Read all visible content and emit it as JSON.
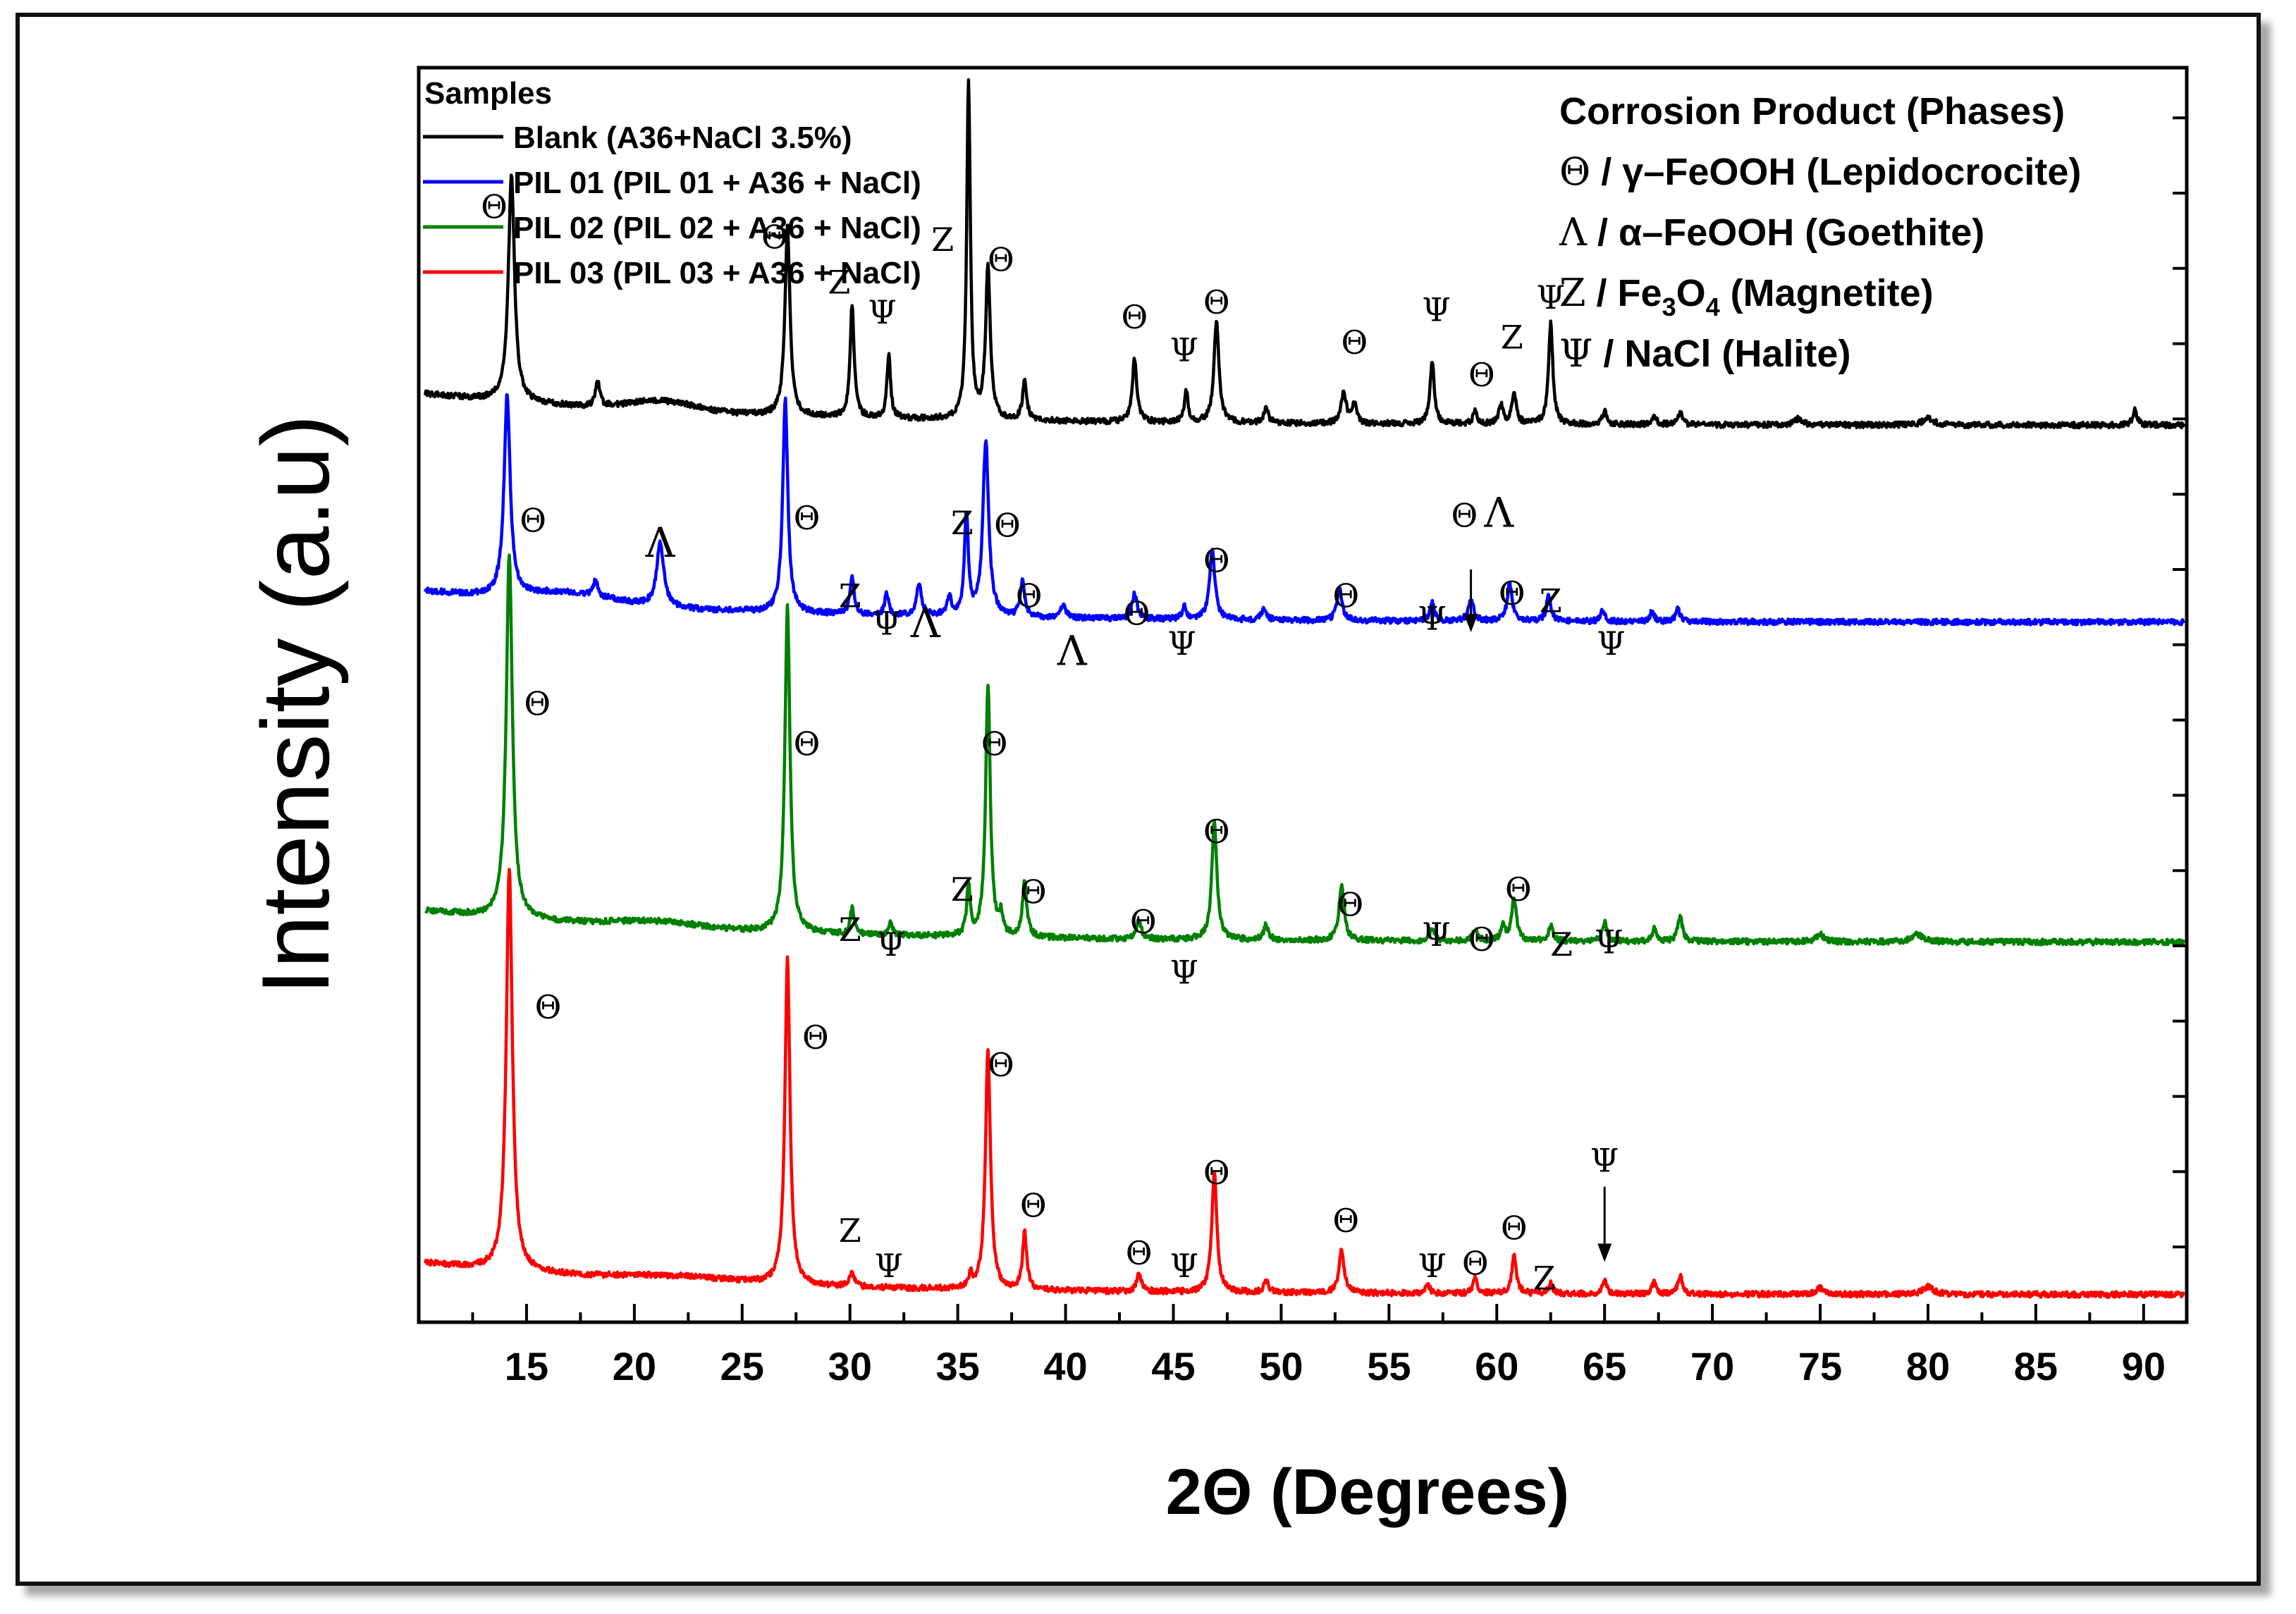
{
  "chart_data": {
    "type": "line",
    "title": "",
    "xlabel": "2Θ (Degrees)",
    "ylabel": "Intensity (a.u)",
    "xlim": [
      10,
      92
    ],
    "ylim": [
      0,
      100
    ],
    "xticks": [
      15,
      20,
      25,
      30,
      35,
      40,
      45,
      50,
      55,
      60,
      65,
      70,
      75,
      80,
      85,
      90
    ],
    "legend_title": "Samples",
    "series": [
      {
        "name": "Blank (A36+NaCl 3.5%)",
        "color": "#000000",
        "baseline": 71.5,
        "tilt": 2.5,
        "noise": 0.45,
        "bumps": [
          [
            21.3,
            0.8,
            1.5
          ]
        ],
        "peaks": [
          [
            14.3,
            18,
            0.17
          ],
          [
            18.3,
            2,
            0.12
          ],
          [
            27.1,
            15,
            0.14
          ],
          [
            30.1,
            9,
            0.11
          ],
          [
            31.8,
            5,
            0.1
          ],
          [
            35.5,
            27,
            0.1
          ],
          [
            36.4,
            12,
            0.13
          ],
          [
            38.1,
            3,
            0.12
          ],
          [
            43.2,
            5,
            0.13
          ],
          [
            45.6,
            2.5,
            0.1
          ],
          [
            47.0,
            8,
            0.14
          ],
          [
            49.3,
            1.2,
            0.12
          ],
          [
            52.9,
            2.5,
            0.14
          ],
          [
            53.4,
            1.5,
            0.12
          ],
          [
            57.0,
            5,
            0.12
          ],
          [
            59.0,
            1.2,
            0.1
          ],
          [
            60.2,
            1.5,
            0.12
          ],
          [
            60.8,
            2.5,
            0.12
          ],
          [
            62.5,
            8,
            0.12
          ],
          [
            65.0,
            1,
            0.12
          ],
          [
            67.3,
            0.8,
            0.12
          ],
          [
            68.5,
            1,
            0.12
          ],
          [
            74.0,
            0.5,
            0.2
          ],
          [
            80.0,
            0.5,
            0.3
          ],
          [
            89.6,
            1.2,
            0.12
          ]
        ]
      },
      {
        "name": "PIL 01 (PIL 01 + A36 + NaCl)",
        "color": "#0000ff",
        "baseline": 55.8,
        "tilt": 2.5,
        "noise": 0.45,
        "bumps": [
          [
            17,
            0.8,
            2.0
          ]
        ],
        "peaks": [
          [
            14.1,
            16,
            0.17
          ],
          [
            18.2,
            1.2,
            0.12
          ],
          [
            21.2,
            5,
            0.2
          ],
          [
            27.0,
            17,
            0.14
          ],
          [
            30.1,
            3,
            0.11
          ],
          [
            31.7,
            1.8,
            0.1
          ],
          [
            33.2,
            2.5,
            0.14
          ],
          [
            34.6,
            1.5,
            0.12
          ],
          [
            35.4,
            8,
            0.11
          ],
          [
            36.3,
            14,
            0.16
          ],
          [
            38.0,
            3,
            0.12
          ],
          [
            39.9,
            1,
            0.15
          ],
          [
            43.2,
            2,
            0.14
          ],
          [
            45.5,
            1,
            0.12
          ],
          [
            46.8,
            5.5,
            0.15
          ],
          [
            49.2,
            1,
            0.12
          ],
          [
            52.7,
            2.5,
            0.14
          ],
          [
            57.0,
            1.5,
            0.12
          ],
          [
            58.8,
            1.8,
            0.14
          ],
          [
            60.6,
            3,
            0.14
          ],
          [
            62.4,
            2,
            0.12
          ],
          [
            64.9,
            0.8,
            0.12
          ],
          [
            67.2,
            0.8,
            0.12
          ],
          [
            68.4,
            1,
            0.12
          ]
        ]
      },
      {
        "name": "PIL 02 (PIL 02 + A36 + NaCl)",
        "color": "#008000",
        "baseline": 30.3,
        "tilt": 2.5,
        "noise": 0.45,
        "bumps": [
          [
            21,
            0.5,
            2.0
          ]
        ],
        "peaks": [
          [
            14.2,
            29,
            0.17
          ],
          [
            27.1,
            26,
            0.14
          ],
          [
            30.1,
            2,
            0.11
          ],
          [
            31.9,
            1,
            0.1
          ],
          [
            35.5,
            4,
            0.1
          ],
          [
            36.4,
            20,
            0.13
          ],
          [
            37.0,
            1.5,
            0.1
          ],
          [
            38.1,
            4.5,
            0.12
          ],
          [
            43.4,
            1.5,
            0.13
          ],
          [
            46.9,
            9.5,
            0.14
          ],
          [
            49.3,
            1.2,
            0.12
          ],
          [
            52.8,
            4.5,
            0.14
          ],
          [
            57.0,
            1,
            0.12
          ],
          [
            59.0,
            1,
            0.12
          ],
          [
            60.3,
            1.2,
            0.12
          ],
          [
            60.8,
            3.5,
            0.13
          ],
          [
            62.5,
            1.2,
            0.12
          ],
          [
            65.0,
            1.5,
            0.12
          ],
          [
            67.3,
            1,
            0.12
          ],
          [
            68.5,
            2,
            0.13
          ],
          [
            75.0,
            0.6,
            0.2
          ],
          [
            79.5,
            0.6,
            0.3
          ]
        ]
      },
      {
        "name": "PIL 03 (PIL 03 + A36 + NaCl)",
        "color": "#ff0000",
        "baseline": 2.2,
        "tilt": 2.5,
        "noise": 0.45,
        "bumps": [
          [
            22,
            0.4,
            2.5
          ]
        ],
        "peaks": [
          [
            14.2,
            32,
            0.17
          ],
          [
            27.1,
            26,
            0.14
          ],
          [
            30.1,
            1.2,
            0.11
          ],
          [
            35.6,
            1,
            0.1
          ],
          [
            36.4,
            19,
            0.14
          ],
          [
            38.1,
            4.5,
            0.12
          ],
          [
            43.4,
            1.5,
            0.13
          ],
          [
            46.9,
            9.5,
            0.14
          ],
          [
            49.3,
            1,
            0.12
          ],
          [
            52.8,
            3.5,
            0.14
          ],
          [
            56.8,
            0.7,
            0.12
          ],
          [
            59.0,
            1.2,
            0.12
          ],
          [
            60.8,
            3,
            0.13
          ],
          [
            62.5,
            0.8,
            0.12
          ],
          [
            65.0,
            1,
            0.12
          ],
          [
            67.3,
            1,
            0.12
          ],
          [
            68.5,
            1.5,
            0.12
          ],
          [
            75.0,
            0.5,
            0.2
          ],
          [
            80.0,
            0.6,
            0.3
          ]
        ]
      }
    ],
    "annotations": [
      {
        "text": "Θ",
        "x": 13.5,
        "y": 88.0
      },
      {
        "text": "Θ",
        "x": 26.5,
        "y": 85.6
      },
      {
        "text": "Z",
        "x": 29.5,
        "y": 82.0
      },
      {
        "text": "Ψ",
        "x": 31.5,
        "y": 79.6
      },
      {
        "text": "Z",
        "x": 34.3,
        "y": 85.4
      },
      {
        "text": "Θ",
        "x": 37.0,
        "y": 83.8
      },
      {
        "text": "Θ",
        "x": 43.2,
        "y": 79.2
      },
      {
        "text": "Ψ",
        "x": 45.5,
        "y": 76.6
      },
      {
        "text": "Θ",
        "x": 47.0,
        "y": 80.4
      },
      {
        "text": "Θ",
        "x": 53.4,
        "y": 77.2
      },
      {
        "text": "Ψ",
        "x": 57.2,
        "y": 79.8
      },
      {
        "text": "Θ",
        "x": 59.3,
        "y": 74.6
      },
      {
        "text": "Z",
        "x": 60.7,
        "y": 77.6
      },
      {
        "text": "Ψ",
        "x": 62.5,
        "y": 80.8
      },
      {
        "text": "Θ",
        "x": 15.3,
        "y": 63.0
      },
      {
        "text": "Λ",
        "x": 21.2,
        "y": 61.0,
        "big": true
      },
      {
        "text": "Θ",
        "x": 28.0,
        "y": 63.2
      },
      {
        "text": "Z",
        "x": 30.0,
        "y": 57.0
      },
      {
        "text": "Ψ",
        "x": 31.7,
        "y": 54.8
      },
      {
        "text": "Λ",
        "x": 33.5,
        "y": 54.6,
        "big": true
      },
      {
        "text": "Z",
        "x": 35.2,
        "y": 62.8
      },
      {
        "text": "Θ",
        "x": 37.3,
        "y": 62.6
      },
      {
        "text": "Θ",
        "x": 38.3,
        "y": 57.0
      },
      {
        "text": "Λ",
        "x": 40.3,
        "y": 52.4,
        "big": true
      },
      {
        "text": "Θ",
        "x": 43.3,
        "y": 55.6
      },
      {
        "text": "Ψ",
        "x": 45.4,
        "y": 53.2
      },
      {
        "text": "Θ",
        "x": 47.0,
        "y": 59.8
      },
      {
        "text": "Θ",
        "x": 53.0,
        "y": 57.0
      },
      {
        "text": "Ψ",
        "x": 57.0,
        "y": 55.2
      },
      {
        "text": "Θ",
        "x": 58.5,
        "y": 63.4
      },
      {
        "text": "Λ",
        "x": 60.1,
        "y": 63.4,
        "big": true
      },
      {
        "text": "Θ",
        "x": 60.7,
        "y": 57.2
      },
      {
        "text": "Z",
        "x": 62.5,
        "y": 56.6
      },
      {
        "text": "Ψ",
        "x": 65.3,
        "y": 53.2
      },
      {
        "text": "Θ",
        "x": 15.5,
        "y": 48.4
      },
      {
        "text": "Θ",
        "x": 28.0,
        "y": 45.2
      },
      {
        "text": "Θ",
        "x": 36.7,
        "y": 45.2
      },
      {
        "text": "Z",
        "x": 35.2,
        "y": 33.6
      },
      {
        "text": "Θ",
        "x": 38.5,
        "y": 33.4
      },
      {
        "text": "Z",
        "x": 30.0,
        "y": 30.4
      },
      {
        "text": "Ψ",
        "x": 31.9,
        "y": 29.2
      },
      {
        "text": "Θ",
        "x": 43.6,
        "y": 31.0
      },
      {
        "text": "Ψ",
        "x": 45.5,
        "y": 27.0
      },
      {
        "text": "Θ",
        "x": 47.0,
        "y": 38.2
      },
      {
        "text": "Θ",
        "x": 53.2,
        "y": 32.4
      },
      {
        "text": "Ψ",
        "x": 57.2,
        "y": 30.0
      },
      {
        "text": "Θ",
        "x": 59.3,
        "y": 29.6
      },
      {
        "text": "Θ",
        "x": 61.0,
        "y": 33.6
      },
      {
        "text": "Z",
        "x": 63.0,
        "y": 29.2
      },
      {
        "text": "Ψ",
        "x": 65.2,
        "y": 29.4
      },
      {
        "text": "Θ",
        "x": 16.0,
        "y": 24.2
      },
      {
        "text": "Θ",
        "x": 28.4,
        "y": 21.8
      },
      {
        "text": "Θ",
        "x": 37.0,
        "y": 19.6
      },
      {
        "text": "Θ",
        "x": 38.5,
        "y": 8.4
      },
      {
        "text": "Z",
        "x": 30.0,
        "y": 6.4
      },
      {
        "text": "Ψ",
        "x": 31.8,
        "y": 3.6
      },
      {
        "text": "Θ",
        "x": 43.4,
        "y": 4.6
      },
      {
        "text": "Ψ",
        "x": 45.5,
        "y": 3.6
      },
      {
        "text": "Θ",
        "x": 47.0,
        "y": 11.0
      },
      {
        "text": "Θ",
        "x": 53.0,
        "y": 7.2
      },
      {
        "text": "Ψ",
        "x": 57.0,
        "y": 3.6
      },
      {
        "text": "Θ",
        "x": 59.0,
        "y": 3.8
      },
      {
        "text": "Θ",
        "x": 60.8,
        "y": 6.6
      },
      {
        "text": "Z",
        "x": 62.2,
        "y": 2.6
      },
      {
        "text": "Ψ",
        "x": 65.0,
        "y": 12.0
      }
    ],
    "arrows": [
      {
        "x": 58.8,
        "from": 60.0,
        "to": 55.0
      },
      {
        "x": 65.0,
        "from": 10.8,
        "to": 4.8
      }
    ]
  },
  "legend": {
    "title": "Samples",
    "entries": [
      {
        "label": "Blank (A36+NaCl 3.5%)",
        "color": "#000000"
      },
      {
        "label": "PIL 01 (PIL 01 + A36 + NaCl)",
        "color": "#0000ff"
      },
      {
        "label": "PIL 02 (PIL 02 + A36 + NaCl)",
        "color": "#008000"
      },
      {
        "label": "PIL 03 (PIL 03 + A36 + NaCl)",
        "color": "#ff0000"
      }
    ]
  },
  "phases": {
    "title": "Corrosion Product (Phases)",
    "items": [
      {
        "symbol": "Θ",
        "sep": " / ",
        "text": "γ–FeOOH (Lepidocrocite)"
      },
      {
        "symbol": "Λ",
        "sep": " / ",
        "text": "α–FeOOH (Goethite)"
      },
      {
        "symbol": "Z",
        "sep": " / ",
        "text_pre": "Fe",
        "sub1": "3",
        "text_mid": "O",
        "sub2": "4",
        "text_post": " (Magnetite)"
      },
      {
        "symbol": "Ψ",
        "sep": " / ",
        "text": "NaCl (Halite)"
      }
    ]
  }
}
